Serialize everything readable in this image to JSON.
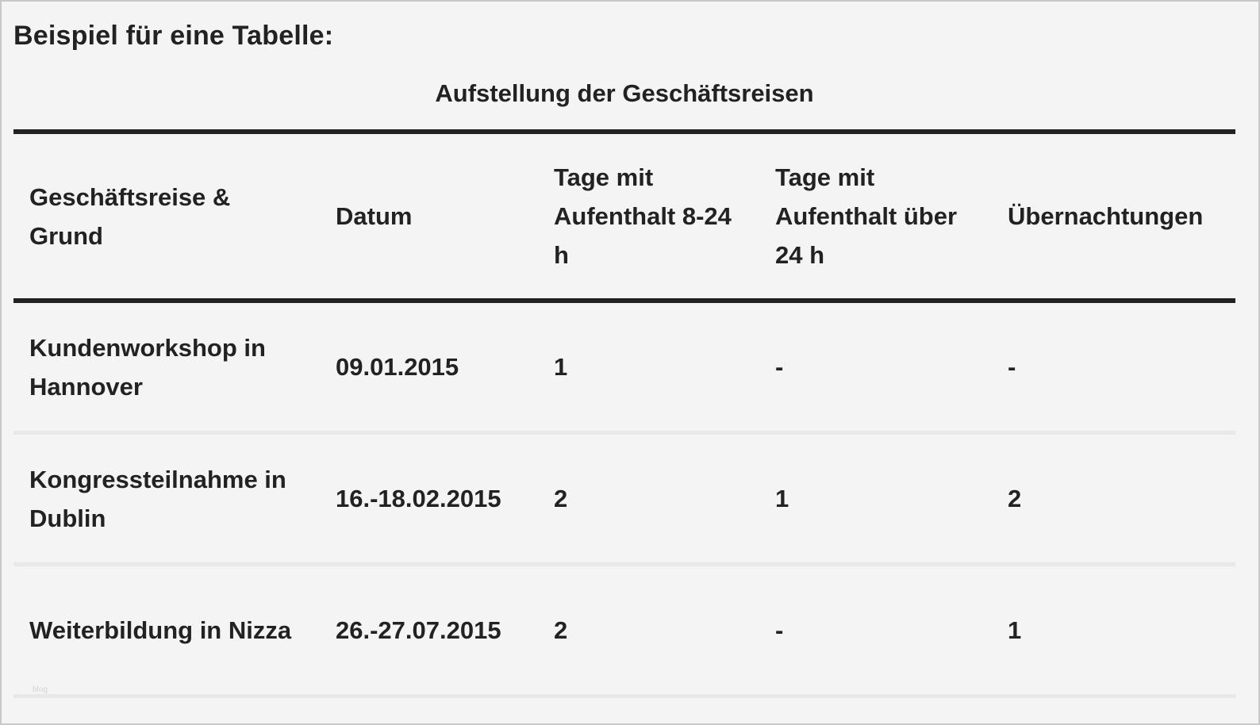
{
  "heading": "Beispiel für eine Tabelle:",
  "caption": "Aufstellung der Geschäftsreisen",
  "columns": [
    "Geschäftsreise & Grund",
    "Datum",
    "Tage mit Aufenthalt 8-24 h",
    "Tage mit Aufenthalt über 24 h",
    "Übernachtungen"
  ],
  "rows": [
    [
      "Kundenworkshop in Hannover",
      "09.01.2015",
      "1",
      "-",
      "-"
    ],
    [
      "Kongressteilnahme in Dublin",
      "16.-18.02.2015",
      "2",
      "1",
      "2"
    ],
    [
      "Weiterbildung in Nizza",
      "26.-27.07.2015",
      "2",
      "-",
      "1"
    ]
  ],
  "watermark": "blog"
}
